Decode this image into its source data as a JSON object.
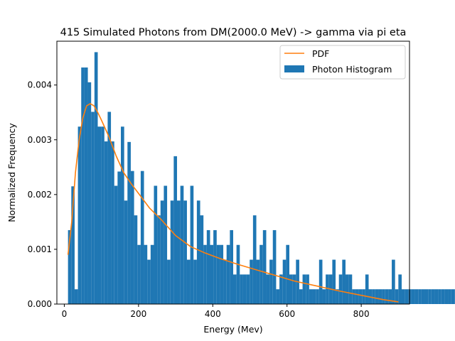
{
  "chart_data": {
    "type": "bar",
    "title": "415 Simulated Photons from DM(2000.0 MeV) -> gamma via pi eta",
    "xlabel": "Energy (Mev)",
    "ylabel": "Normalized Frequency",
    "xlim": [
      -20,
      930
    ],
    "ylim": [
      0,
      0.0048
    ],
    "x_ticks": [
      0,
      200,
      400,
      600,
      800
    ],
    "x_tick_labels": [
      "0",
      "200",
      "400",
      "600",
      "800"
    ],
    "y_ticks": [
      0,
      0.001,
      0.002,
      0.003,
      0.004
    ],
    "y_tick_labels": [
      "0.000",
      "0.001",
      "0.002",
      "0.003",
      "0.004"
    ],
    "grid": false,
    "legend_position": "top-right",
    "histogram": {
      "name": "Photon Histogram",
      "color": "#1f77b4",
      "bin_start": 10,
      "bin_width": 8.9,
      "heights": [
        0.00135,
        0.00215,
        0.00027,
        0.00324,
        0.00432,
        0.00432,
        0.00405,
        0.00351,
        0.0046,
        0.00324,
        0.00324,
        0.00297,
        0.00351,
        0.00297,
        0.00216,
        0.00242,
        0.00324,
        0.00189,
        0.00296,
        0.00243,
        0.00162,
        0.00108,
        0.00243,
        0.00108,
        0.00081,
        0.00108,
        0.00216,
        0.00162,
        0.00189,
        0.00216,
        0.00081,
        0.00189,
        0.0027,
        0.00189,
        0.00216,
        0.00189,
        0.00081,
        0.00216,
        0.00081,
        0.00189,
        0.00162,
        0.00108,
        0.00135,
        0.00108,
        0.00135,
        0.00108,
        0.00108,
        0.00081,
        0.00108,
        0.00135,
        0.00054,
        0.00108,
        0.00054,
        0.00054,
        0.00054,
        0.00081,
        0.00162,
        0.00081,
        0.00108,
        0.00135,
        0.00054,
        0.00081,
        0.00135,
        0.00027,
        0.00054,
        0.00081,
        0.00108,
        0.00054,
        0.00054,
        0.00081,
        0.00027,
        0.00054,
        0.00054,
        0.00027,
        0.00027,
        0.00027,
        0.00081,
        0.00027,
        0.00054,
        0.00054,
        0.00081,
        0.00027,
        0.00054,
        0.00081,
        0.00054,
        0.00054,
        0.00027,
        0.00027,
        0.00027,
        0.00027,
        0.00054,
        0.00027,
        0.00027,
        0.00027,
        0.00027,
        0.00027,
        0.00027,
        0.00027,
        0.00081,
        0.00027,
        0.00054,
        0.00027,
        0.00027,
        0.00027,
        0.00027,
        0.00027,
        0.00027,
        0.00027,
        0.00027,
        0.00027,
        0.00027,
        0.00027,
        0.00027,
        0.00027,
        0.00027,
        0.00027,
        0.00027,
        0.00027,
        0.00027,
        0.00027,
        0.00054,
        0.00027,
        0.00027,
        0.00054,
        0.00027,
        0.00054,
        0.00027,
        0.00054,
        0.00027,
        0.00054,
        0.00027,
        0.00027,
        0.00027,
        0.00027,
        0.00027,
        0.00027,
        0.00027,
        0.00027,
        0.00027,
        0.00027,
        0.00027,
        0.00027,
        0.00027,
        0.00027,
        0.00027,
        0.00027,
        0.00027,
        0.00027,
        0.00027,
        0.00027,
        0.00027,
        0.00027,
        0.00027,
        0.00027,
        0.00027,
        0.00027,
        0.00027
      ]
    },
    "pdf": {
      "name": "PDF",
      "color": "#ff7f0e",
      "x": [
        10,
        20,
        30,
        40,
        50,
        60,
        70,
        80,
        90,
        100,
        120,
        140,
        160,
        180,
        200,
        230,
        260,
        300,
        340,
        380,
        420,
        470,
        520,
        570,
        620,
        680,
        740,
        800,
        860,
        900
      ],
      "y": [
        0.0009,
        0.0015,
        0.0024,
        0.003,
        0.0034,
        0.00362,
        0.00366,
        0.00362,
        0.0035,
        0.00336,
        0.00306,
        0.0027,
        0.0024,
        0.0022,
        0.00202,
        0.00175,
        0.00155,
        0.00125,
        0.00105,
        0.00093,
        0.00083,
        0.00072,
        0.00062,
        0.00052,
        0.00042,
        0.00033,
        0.00024,
        0.00016,
        8e-05,
        4e-05
      ]
    }
  }
}
